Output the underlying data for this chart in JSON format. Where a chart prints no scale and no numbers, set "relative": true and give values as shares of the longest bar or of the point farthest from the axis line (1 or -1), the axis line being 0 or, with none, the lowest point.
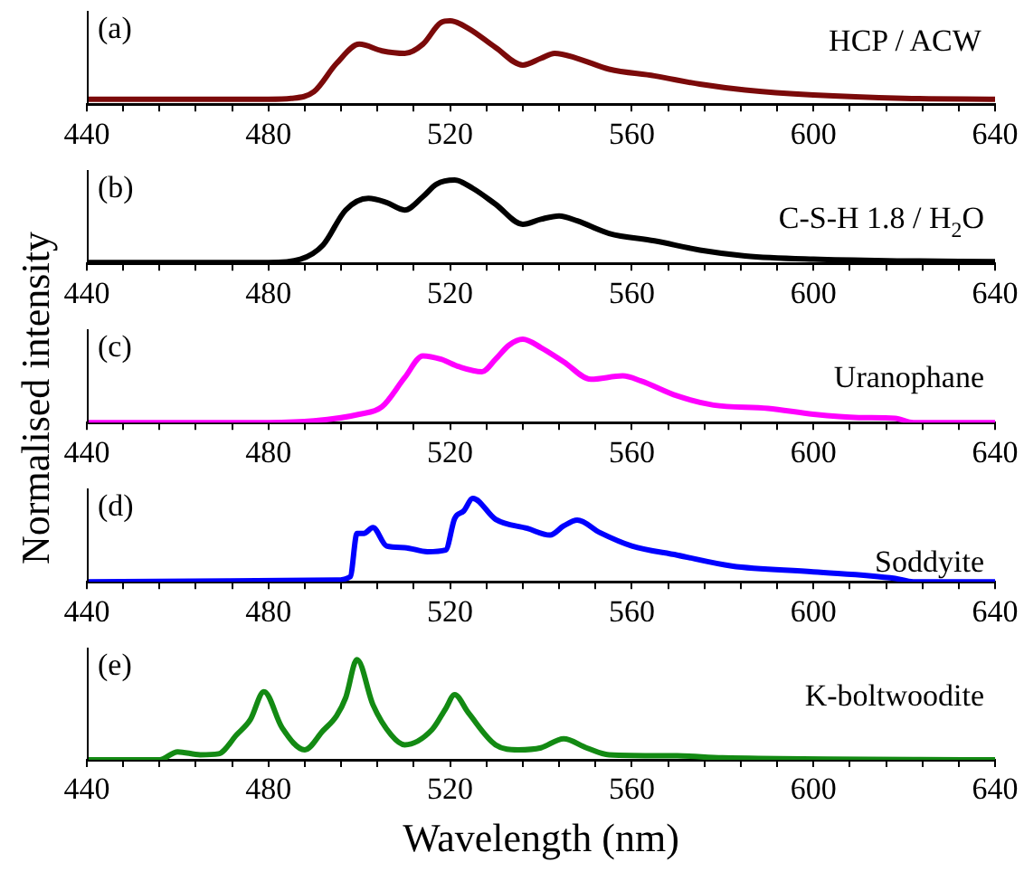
{
  "chart_data": [
    {
      "type": "line",
      "relative": true,
      "legend": false,
      "tick_labels": "x",
      "annotations": [
        "(a)"
      ],
      "xlim": [
        440,
        640
      ],
      "xticks": [
        440,
        {
          "value": 448,
          "label": null
        },
        {
          "value": 456,
          "label": null
        },
        {
          "value": 464,
          "label": null
        },
        {
          "value": 472,
          "label": null
        },
        480,
        {
          "value": 488,
          "label": null
        },
        {
          "value": 496,
          "label": null
        },
        {
          "value": 504,
          "label": null
        },
        {
          "value": 512,
          "label": null
        },
        520,
        {
          "value": 528,
          "label": null
        },
        {
          "value": 536,
          "label": null
        },
        {
          "value": 544,
          "label": null
        },
        {
          "value": 552,
          "label": null
        },
        560,
        {
          "value": 568,
          "label": null
        },
        {
          "value": 576,
          "label": null
        },
        {
          "value": 584,
          "label": null
        },
        {
          "value": 592,
          "label": null
        },
        600,
        {
          "value": 608,
          "label": null
        },
        {
          "value": 616,
          "label": null
        },
        {
          "value": 624,
          "label": null
        },
        {
          "value": 632,
          "label": null
        },
        640
      ],
      "series": [
        {
          "name": "HCP / ACW",
          "color": "#7b0a0a",
          "x": [
            440,
            480,
            485,
            490,
            495,
            500,
            505,
            510,
            514,
            518,
            520,
            524,
            530,
            536,
            540,
            543,
            548,
            555,
            565,
            575,
            585,
            600,
            620,
            640
          ],
          "values": [
            0.06,
            0.06,
            0.07,
            0.15,
            0.49,
            0.72,
            0.64,
            0.61,
            0.72,
            0.98,
            1.0,
            0.91,
            0.68,
            0.47,
            0.55,
            0.61,
            0.55,
            0.42,
            0.34,
            0.24,
            0.17,
            0.11,
            0.07,
            0.06
          ]
        }
      ]
    },
    {
      "type": "line",
      "relative": true,
      "legend": false,
      "tick_labels": "x",
      "annotations": [
        "(b)"
      ],
      "xlim": [
        440,
        640
      ],
      "xticks": [
        440,
        {
          "value": 448,
          "label": null
        },
        {
          "value": 456,
          "label": null
        },
        {
          "value": 464,
          "label": null
        },
        {
          "value": 472,
          "label": null
        },
        480,
        {
          "value": 488,
          "label": null
        },
        {
          "value": 496,
          "label": null
        },
        {
          "value": 504,
          "label": null
        },
        {
          "value": 512,
          "label": null
        },
        520,
        {
          "value": 528,
          "label": null
        },
        {
          "value": 536,
          "label": null
        },
        {
          "value": 544,
          "label": null
        },
        {
          "value": 552,
          "label": null
        },
        560,
        {
          "value": 568,
          "label": null
        },
        {
          "value": 576,
          "label": null
        },
        {
          "value": 584,
          "label": null
        },
        {
          "value": 592,
          "label": null
        },
        600,
        {
          "value": 608,
          "label": null
        },
        {
          "value": 616,
          "label": null
        },
        {
          "value": 624,
          "label": null
        },
        {
          "value": 632,
          "label": null
        },
        640
      ],
      "series": [
        {
          "name": "C-S-H 1.8 / H$_{2}$O",
          "color": "#000000",
          "x": [
            440,
            480,
            487,
            492,
            497,
            502,
            506,
            510,
            514,
            517,
            521,
            525,
            530,
            536,
            540,
            544,
            548,
            555,
            565,
            575,
            585,
            600,
            620,
            640
          ],
          "values": [
            0.01,
            0.01,
            0.05,
            0.22,
            0.64,
            0.78,
            0.73,
            0.64,
            0.8,
            0.95,
            1.0,
            0.9,
            0.71,
            0.47,
            0.53,
            0.57,
            0.51,
            0.36,
            0.27,
            0.16,
            0.09,
            0.05,
            0.03,
            0.02
          ]
        }
      ]
    },
    {
      "type": "line",
      "relative": true,
      "legend": false,
      "tick_labels": "x",
      "ylabel": "Normalised intensity",
      "annotations": [
        "(c)"
      ],
      "xlim": [
        440,
        640
      ],
      "xticks": [
        440,
        {
          "value": 448,
          "label": null
        },
        {
          "value": 456,
          "label": null
        },
        {
          "value": 464,
          "label": null
        },
        {
          "value": 472,
          "label": null
        },
        480,
        {
          "value": 488,
          "label": null
        },
        {
          "value": 496,
          "label": null
        },
        {
          "value": 504,
          "label": null
        },
        {
          "value": 512,
          "label": null
        },
        520,
        {
          "value": 528,
          "label": null
        },
        {
          "value": 536,
          "label": null
        },
        {
          "value": 544,
          "label": null
        },
        {
          "value": 552,
          "label": null
        },
        560,
        {
          "value": 568,
          "label": null
        },
        {
          "value": 576,
          "label": null
        },
        {
          "value": 584,
          "label": null
        },
        {
          "value": 592,
          "label": null
        },
        600,
        {
          "value": 608,
          "label": null
        },
        {
          "value": 616,
          "label": null
        },
        {
          "value": 624,
          "label": null
        },
        {
          "value": 632,
          "label": null
        },
        640
      ],
      "series": [
        {
          "name": "Uranophane",
          "color": "#ff00ff",
          "x": [
            440,
            480,
            490,
            500,
            505,
            510,
            514,
            518,
            522,
            527,
            530,
            533,
            536,
            540,
            545,
            551,
            558,
            562,
            570,
            578,
            590,
            600,
            610,
            618,
            622,
            640
          ],
          "values": [
            0,
            0,
            0.02,
            0.1,
            0.19,
            0.54,
            0.8,
            0.76,
            0.67,
            0.61,
            0.76,
            0.93,
            1.0,
            0.9,
            0.73,
            0.52,
            0.56,
            0.5,
            0.32,
            0.21,
            0.17,
            0.1,
            0.06,
            0.05,
            0,
            0
          ]
        }
      ]
    },
    {
      "type": "line",
      "relative": true,
      "legend": false,
      "tick_labels": "x",
      "annotations": [
        "(d)"
      ],
      "xlim": [
        440,
        640
      ],
      "xticks": [
        440,
        {
          "value": 448,
          "label": null
        },
        {
          "value": 456,
          "label": null
        },
        {
          "value": 464,
          "label": null
        },
        {
          "value": 472,
          "label": null
        },
        480,
        {
          "value": 488,
          "label": null
        },
        {
          "value": 496,
          "label": null
        },
        {
          "value": 504,
          "label": null
        },
        {
          "value": 512,
          "label": null
        },
        520,
        {
          "value": 528,
          "label": null
        },
        {
          "value": 536,
          "label": null
        },
        {
          "value": 544,
          "label": null
        },
        {
          "value": 552,
          "label": null
        },
        560,
        {
          "value": 568,
          "label": null
        },
        {
          "value": 576,
          "label": null
        },
        {
          "value": 584,
          "label": null
        },
        {
          "value": 592,
          "label": null
        },
        600,
        {
          "value": 608,
          "label": null
        },
        {
          "value": 616,
          "label": null
        },
        {
          "value": 624,
          "label": null
        },
        {
          "value": 632,
          "label": null
        },
        640
      ],
      "series": [
        {
          "name": "Soddyite",
          "color": "#0000ff",
          "x": [
            440,
            495,
            498,
            499.5,
            501,
            503,
            506,
            510,
            515,
            519,
            521,
            523,
            525,
            530,
            537,
            542,
            545,
            548,
            553,
            560,
            570,
            582,
            600,
            618,
            622,
            640
          ],
          "values": [
            0,
            0.02,
            0.06,
            0.58,
            0.58,
            0.65,
            0.43,
            0.41,
            0.36,
            0.38,
            0.76,
            0.85,
            1.0,
            0.75,
            0.64,
            0.56,
            0.67,
            0.74,
            0.59,
            0.43,
            0.32,
            0.19,
            0.12,
            0.04,
            0,
            0
          ]
        }
      ]
    },
    {
      "type": "line",
      "relative": true,
      "legend": false,
      "tick_labels": "x",
      "xlabel": "Wavelength (nm)",
      "annotations": [
        "(e)"
      ],
      "xlim": [
        440,
        640
      ],
      "xticks": [
        440,
        {
          "value": 448,
          "label": null
        },
        {
          "value": 456,
          "label": null
        },
        {
          "value": 464,
          "label": null
        },
        {
          "value": 472,
          "label": null
        },
        480,
        {
          "value": 488,
          "label": null
        },
        {
          "value": 496,
          "label": null
        },
        {
          "value": 504,
          "label": null
        },
        {
          "value": 512,
          "label": null
        },
        520,
        {
          "value": 528,
          "label": null
        },
        {
          "value": 536,
          "label": null
        },
        {
          "value": 544,
          "label": null
        },
        {
          "value": 552,
          "label": null
        },
        560,
        {
          "value": 568,
          "label": null
        },
        {
          "value": 576,
          "label": null
        },
        {
          "value": 584,
          "label": null
        },
        {
          "value": 592,
          "label": null
        },
        600,
        {
          "value": 608,
          "label": null
        },
        {
          "value": 616,
          "label": null
        },
        {
          "value": 624,
          "label": null
        },
        {
          "value": 632,
          "label": null
        },
        640
      ],
      "series": [
        {
          "name": "K-boltwoodite",
          "color": "#138a13",
          "x": [
            440,
            456,
            460,
            465,
            469,
            473,
            476,
            479,
            483,
            488,
            492,
            495,
            497,
            499.5,
            503,
            507,
            510,
            516,
            519,
            521,
            524,
            530,
            535,
            540,
            545,
            550,
            555,
            570,
            580,
            640
          ],
          "values": [
            0,
            0,
            0.08,
            0.05,
            0.06,
            0.25,
            0.4,
            0.68,
            0.32,
            0.1,
            0.29,
            0.44,
            0.62,
            1.0,
            0.55,
            0.25,
            0.15,
            0.3,
            0.51,
            0.65,
            0.47,
            0.15,
            0.1,
            0.12,
            0.21,
            0.12,
            0.05,
            0.04,
            0.02,
            0
          ]
        }
      ]
    }
  ]
}
